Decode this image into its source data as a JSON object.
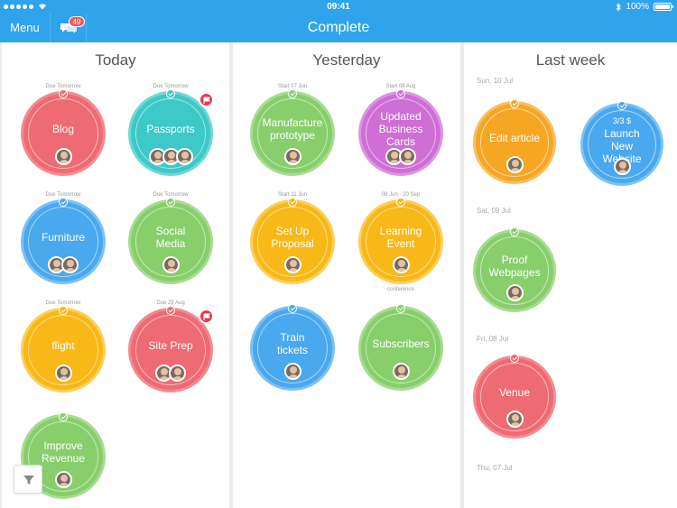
{
  "status_bar": {
    "time": "09:41",
    "battery": "100%"
  },
  "nav": {
    "menu_label": "Menu",
    "chat_badge": "49",
    "title": "Complete"
  },
  "columns": {
    "today": {
      "title": "Today",
      "items": [
        {
          "label": "Blog",
          "caption": "Due Tomorrow",
          "color": "#ef6b73"
        },
        {
          "label": "Passports",
          "caption": "Due Tomorrow",
          "color": "#3cc9c7",
          "flagged": true
        },
        {
          "label": "Furniture",
          "caption": "Due Tomorrow",
          "color": "#4aa8ee"
        },
        {
          "label": "Social Media",
          "caption": "Due Tomorrow",
          "color": "#88cf6b"
        },
        {
          "label": "flight",
          "caption": "Due Tomorrow",
          "color": "#f8b817"
        },
        {
          "label": "Site Prep",
          "caption": "Due 29 Aug",
          "color": "#ef6b73",
          "flagged": true
        },
        {
          "label": "Improve Revenue",
          "caption": "",
          "color": "#88cf6b"
        }
      ]
    },
    "yesterday": {
      "title": "Yesterday",
      "items": [
        {
          "label": "Manufacture prototype",
          "caption": "Start 07 Jun",
          "color": "#88cf6b"
        },
        {
          "label": "Updated Business Cards",
          "caption": "Start 08 Aug",
          "color": "#cf6fd6"
        },
        {
          "label": "Set Up Proposal",
          "caption": "Start 11 Jun",
          "color": "#f8b817"
        },
        {
          "label": "Learning Event",
          "caption": "08 Jun - 20 Sep",
          "caption_below": "conference",
          "color": "#f8b817"
        },
        {
          "label": "Train tickets",
          "caption": "",
          "color": "#4aa8ee"
        },
        {
          "label": "Subscribers",
          "caption": "",
          "color": "#88cf6b"
        }
      ]
    },
    "last_week": {
      "title": "Last week",
      "dates": [
        "Sun, 10 Jul",
        "Sat, 09 Jul",
        "Fri, 08 Jul",
        "Thu, 07 Jul"
      ],
      "items": [
        {
          "label": "Edit article",
          "color": "#f5a623"
        },
        {
          "label": "Launch New Website",
          "subtext": "3/3 $",
          "color": "#4aa8ee"
        },
        {
          "label": "Proof Webpages",
          "color": "#88cf6b"
        },
        {
          "label": "Venue",
          "color": "#ef6b73"
        }
      ]
    }
  },
  "icons": [
    "chat-icon",
    "check-icon",
    "flag-icon",
    "filter-icon",
    "wifi-icon",
    "bluetooth-icon",
    "battery-icon"
  ]
}
